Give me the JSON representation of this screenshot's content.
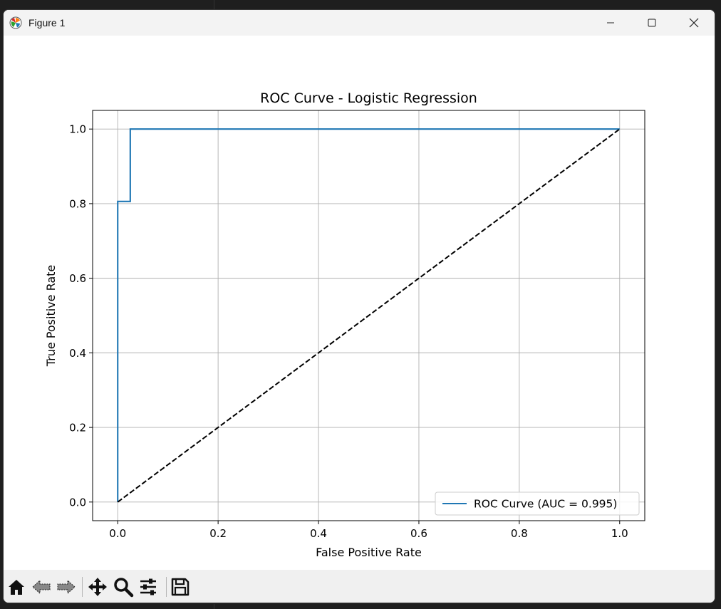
{
  "window": {
    "title": "Figure 1"
  },
  "toolbar": {
    "tools": [
      {
        "name": "home-icon"
      },
      {
        "name": "back-icon"
      },
      {
        "name": "forward-icon"
      },
      {
        "name": "pan-icon"
      },
      {
        "name": "zoom-icon"
      },
      {
        "name": "subplots-config-icon"
      },
      {
        "name": "save-icon"
      }
    ]
  },
  "chart_data": {
    "type": "line",
    "title": "ROC Curve - Logistic Regression",
    "xlabel": "False Positive Rate",
    "ylabel": "True Positive Rate",
    "xlim": [
      -0.05,
      1.05
    ],
    "ylim": [
      -0.05,
      1.05
    ],
    "xticks": [
      0.0,
      0.2,
      0.4,
      0.6,
      0.8,
      1.0
    ],
    "yticks": [
      0.0,
      0.2,
      0.4,
      0.6,
      0.8,
      1.0
    ],
    "xtick_labels": [
      "0.0",
      "0.2",
      "0.4",
      "0.6",
      "0.8",
      "1.0"
    ],
    "ytick_labels": [
      "0.0",
      "0.2",
      "0.4",
      "0.6",
      "0.8",
      "1.0"
    ],
    "grid": true,
    "legend_position": "lower-right",
    "series": [
      {
        "name": "ROC Curve (AUC = 0.995)",
        "color": "#1f77b4",
        "style": "solid",
        "x": [
          0.0,
          0.0,
          0.025,
          0.025,
          1.0
        ],
        "y": [
          0.0,
          0.806,
          0.806,
          1.0,
          1.0
        ]
      },
      {
        "color": "#000000",
        "style": "dashed",
        "x": [
          0.0,
          1.0
        ],
        "y": [
          0.0,
          1.0
        ]
      }
    ]
  }
}
